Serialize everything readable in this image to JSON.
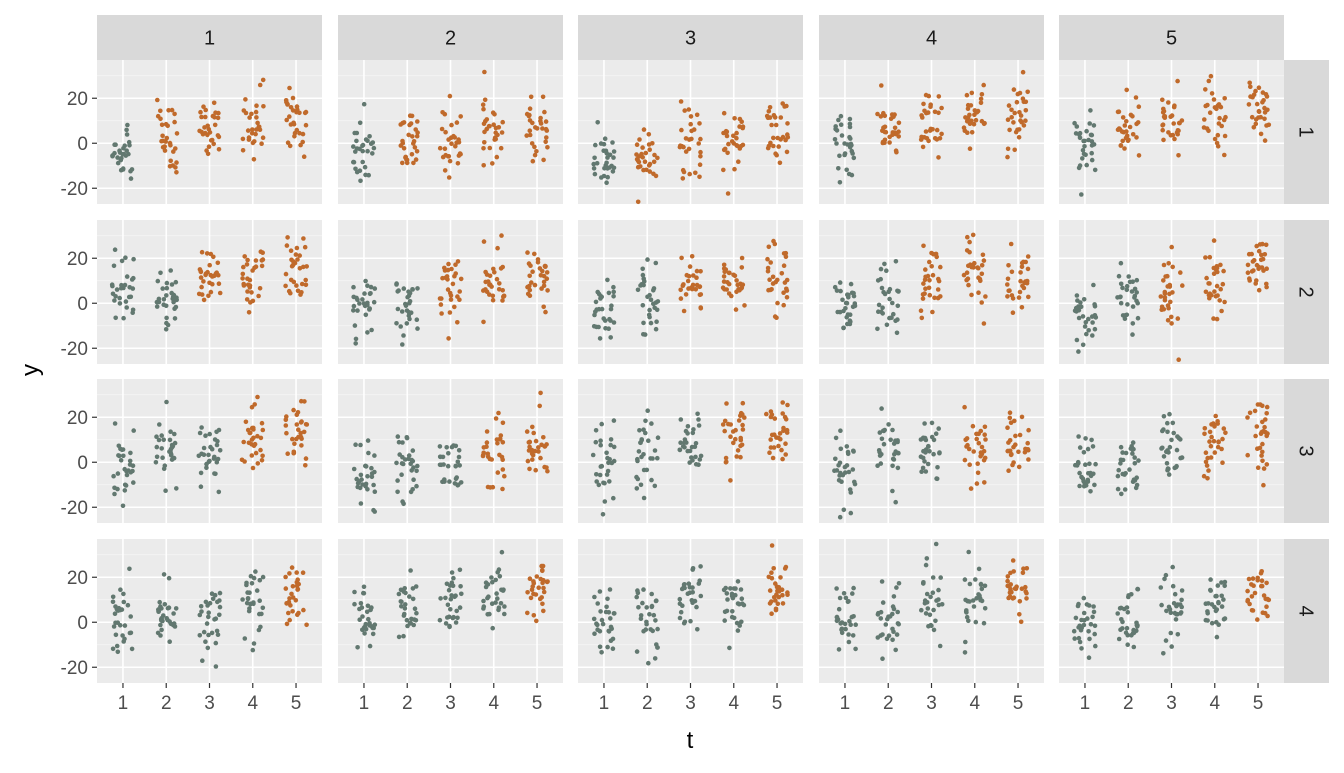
{
  "chart_data": {
    "type": "scatter",
    "xlabel": "t",
    "ylabel": "y",
    "x_categories": [
      "1",
      "2",
      "3",
      "4",
      "5"
    ],
    "ylim": [
      -27,
      37
    ],
    "y_ticks": [
      -20,
      0,
      20
    ],
    "grid": true,
    "legend": "none",
    "facet_columns": [
      "1",
      "2",
      "3",
      "4",
      "5"
    ],
    "facet_rows": [
      "1",
      "2",
      "3",
      "4"
    ],
    "colors": {
      "gray": "#627870",
      "orange": "#c06a2b"
    },
    "points_per_group": 30,
    "jitter_width": 0.25,
    "panels": [
      {
        "row": "1",
        "col": "1",
        "groups": [
          {
            "t": 1,
            "color": "gray",
            "center": -3,
            "spread": 8
          },
          {
            "t": 2,
            "color": "orange",
            "center": 3,
            "spread": 8
          },
          {
            "t": 3,
            "color": "orange",
            "center": 6,
            "spread": 8
          },
          {
            "t": 4,
            "color": "orange",
            "center": 7,
            "spread": 8
          },
          {
            "t": 5,
            "color": "orange",
            "center": 11,
            "spread": 7
          }
        ]
      },
      {
        "row": "1",
        "col": "2",
        "groups": [
          {
            "t": 1,
            "color": "gray",
            "center": -3,
            "spread": 8
          },
          {
            "t": 2,
            "color": "orange",
            "center": 0,
            "spread": 8
          },
          {
            "t": 3,
            "color": "orange",
            "center": 0,
            "spread": 7
          },
          {
            "t": 4,
            "color": "orange",
            "center": 5,
            "spread": 7
          },
          {
            "t": 5,
            "color": "orange",
            "center": 9,
            "spread": 7
          }
        ]
      },
      {
        "row": "1",
        "col": "3",
        "groups": [
          {
            "t": 1,
            "color": "gray",
            "center": -5,
            "spread": 7
          },
          {
            "t": 2,
            "color": "orange",
            "center": -6,
            "spread": 6
          },
          {
            "t": 3,
            "color": "orange",
            "center": 2,
            "spread": 8
          },
          {
            "t": 4,
            "color": "orange",
            "center": 1,
            "spread": 7
          },
          {
            "t": 5,
            "color": "orange",
            "center": 4,
            "spread": 7
          }
        ]
      },
      {
        "row": "1",
        "col": "4",
        "groups": [
          {
            "t": 1,
            "color": "gray",
            "center": -1,
            "spread": 8
          },
          {
            "t": 2,
            "color": "orange",
            "center": 6,
            "spread": 6
          },
          {
            "t": 3,
            "color": "orange",
            "center": 7,
            "spread": 9
          },
          {
            "t": 4,
            "color": "orange",
            "center": 11,
            "spread": 7
          },
          {
            "t": 5,
            "color": "orange",
            "center": 12,
            "spread": 8
          }
        ]
      },
      {
        "row": "1",
        "col": "5",
        "groups": [
          {
            "t": 1,
            "color": "gray",
            "center": 0,
            "spread": 8
          },
          {
            "t": 2,
            "color": "orange",
            "center": 7,
            "spread": 7
          },
          {
            "t": 3,
            "color": "orange",
            "center": 9,
            "spread": 7
          },
          {
            "t": 4,
            "color": "orange",
            "center": 11,
            "spread": 7
          },
          {
            "t": 5,
            "color": "orange",
            "center": 13,
            "spread": 7
          }
        ]
      },
      {
        "row": "2",
        "col": "1",
        "groups": [
          {
            "t": 1,
            "color": "gray",
            "center": 2,
            "spread": 9
          },
          {
            "t": 2,
            "color": "gray",
            "center": 3,
            "spread": 7
          },
          {
            "t": 3,
            "color": "orange",
            "center": 11,
            "spread": 7
          },
          {
            "t": 4,
            "color": "orange",
            "center": 13,
            "spread": 8
          },
          {
            "t": 5,
            "color": "orange",
            "center": 15,
            "spread": 8
          }
        ]
      },
      {
        "row": "2",
        "col": "2",
        "groups": [
          {
            "t": 1,
            "color": "gray",
            "center": -3,
            "spread": 8
          },
          {
            "t": 2,
            "color": "gray",
            "center": -1,
            "spread": 7
          },
          {
            "t": 3,
            "color": "orange",
            "center": 7,
            "spread": 8
          },
          {
            "t": 4,
            "color": "orange",
            "center": 9,
            "spread": 9
          },
          {
            "t": 5,
            "color": "orange",
            "center": 9,
            "spread": 7
          }
        ]
      },
      {
        "row": "2",
        "col": "3",
        "groups": [
          {
            "t": 1,
            "color": "gray",
            "center": -2,
            "spread": 7
          },
          {
            "t": 2,
            "color": "gray",
            "center": 4,
            "spread": 8
          },
          {
            "t": 3,
            "color": "orange",
            "center": 8,
            "spread": 6
          },
          {
            "t": 4,
            "color": "orange",
            "center": 8,
            "spread": 7
          },
          {
            "t": 5,
            "color": "orange",
            "center": 13,
            "spread": 8
          }
        ]
      },
      {
        "row": "2",
        "col": "4",
        "groups": [
          {
            "t": 1,
            "color": "gray",
            "center": -2,
            "spread": 7
          },
          {
            "t": 2,
            "color": "gray",
            "center": 1,
            "spread": 8
          },
          {
            "t": 3,
            "color": "orange",
            "center": 9,
            "spread": 8
          },
          {
            "t": 4,
            "color": "orange",
            "center": 12,
            "spread": 7
          },
          {
            "t": 5,
            "color": "orange",
            "center": 12,
            "spread": 8
          }
        ]
      },
      {
        "row": "2",
        "col": "5",
        "groups": [
          {
            "t": 1,
            "color": "gray",
            "center": -5,
            "spread": 8
          },
          {
            "t": 2,
            "color": "gray",
            "center": 3,
            "spread": 6
          },
          {
            "t": 3,
            "color": "orange",
            "center": 5,
            "spread": 8
          },
          {
            "t": 4,
            "color": "orange",
            "center": 7,
            "spread": 8
          },
          {
            "t": 5,
            "color": "orange",
            "center": 16,
            "spread": 6
          }
        ]
      },
      {
        "row": "3",
        "col": "1",
        "groups": [
          {
            "t": 1,
            "color": "gray",
            "center": -2,
            "spread": 8
          },
          {
            "t": 2,
            "color": "gray",
            "center": 4,
            "spread": 7
          },
          {
            "t": 3,
            "color": "gray",
            "center": 5,
            "spread": 7
          },
          {
            "t": 4,
            "color": "orange",
            "center": 10,
            "spread": 7
          },
          {
            "t": 5,
            "color": "orange",
            "center": 13,
            "spread": 8
          }
        ]
      },
      {
        "row": "3",
        "col": "2",
        "groups": [
          {
            "t": 1,
            "color": "gray",
            "center": -4,
            "spread": 7
          },
          {
            "t": 2,
            "color": "gray",
            "center": 0,
            "spread": 7
          },
          {
            "t": 3,
            "color": "gray",
            "center": 1,
            "spread": 7
          },
          {
            "t": 4,
            "color": "orange",
            "center": 6,
            "spread": 8
          },
          {
            "t": 5,
            "color": "orange",
            "center": 7,
            "spread": 7
          }
        ]
      },
      {
        "row": "3",
        "col": "3",
        "groups": [
          {
            "t": 1,
            "color": "gray",
            "center": 2,
            "spread": 8
          },
          {
            "t": 2,
            "color": "gray",
            "center": 2,
            "spread": 8
          },
          {
            "t": 3,
            "color": "gray",
            "center": 8,
            "spread": 8
          },
          {
            "t": 4,
            "color": "orange",
            "center": 13,
            "spread": 7
          },
          {
            "t": 5,
            "color": "orange",
            "center": 13,
            "spread": 8
          }
        ]
      },
      {
        "row": "3",
        "col": "4",
        "groups": [
          {
            "t": 1,
            "color": "gray",
            "center": -4,
            "spread": 8
          },
          {
            "t": 2,
            "color": "gray",
            "center": 1,
            "spread": 8
          },
          {
            "t": 3,
            "color": "gray",
            "center": 7,
            "spread": 8
          },
          {
            "t": 4,
            "color": "orange",
            "center": 6,
            "spread": 8
          },
          {
            "t": 5,
            "color": "orange",
            "center": 8,
            "spread": 7
          }
        ]
      },
      {
        "row": "3",
        "col": "5",
        "groups": [
          {
            "t": 1,
            "color": "gray",
            "center": -4,
            "spread": 7
          },
          {
            "t": 2,
            "color": "gray",
            "center": 1,
            "spread": 8
          },
          {
            "t": 3,
            "color": "gray",
            "center": 7,
            "spread": 7
          },
          {
            "t": 4,
            "color": "orange",
            "center": 9,
            "spread": 8
          },
          {
            "t": 5,
            "color": "orange",
            "center": 11,
            "spread": 8
          }
        ]
      },
      {
        "row": "4",
        "col": "1",
        "groups": [
          {
            "t": 1,
            "color": "gray",
            "center": 1,
            "spread": 8
          },
          {
            "t": 2,
            "color": "gray",
            "center": 2,
            "spread": 7
          },
          {
            "t": 3,
            "color": "gray",
            "center": 1,
            "spread": 9
          },
          {
            "t": 4,
            "color": "gray",
            "center": 8,
            "spread": 8
          },
          {
            "t": 5,
            "color": "orange",
            "center": 14,
            "spread": 7
          }
        ]
      },
      {
        "row": "4",
        "col": "2",
        "groups": [
          {
            "t": 1,
            "color": "gray",
            "center": 1,
            "spread": 7
          },
          {
            "t": 2,
            "color": "gray",
            "center": 5,
            "spread": 7
          },
          {
            "t": 3,
            "color": "gray",
            "center": 9,
            "spread": 8
          },
          {
            "t": 4,
            "color": "gray",
            "center": 11,
            "spread": 8
          },
          {
            "t": 5,
            "color": "orange",
            "center": 14,
            "spread": 7
          }
        ]
      },
      {
        "row": "4",
        "col": "3",
        "groups": [
          {
            "t": 1,
            "color": "gray",
            "center": 2,
            "spread": 9
          },
          {
            "t": 2,
            "color": "gray",
            "center": 3,
            "spread": 8
          },
          {
            "t": 3,
            "color": "gray",
            "center": 9,
            "spread": 9
          },
          {
            "t": 4,
            "color": "gray",
            "center": 8,
            "spread": 8
          },
          {
            "t": 5,
            "color": "orange",
            "center": 15,
            "spread": 7
          }
        ]
      },
      {
        "row": "4",
        "col": "4",
        "groups": [
          {
            "t": 1,
            "color": "gray",
            "center": 2,
            "spread": 7
          },
          {
            "t": 2,
            "color": "gray",
            "center": 1,
            "spread": 7
          },
          {
            "t": 3,
            "color": "gray",
            "center": 8,
            "spread": 7
          },
          {
            "t": 4,
            "color": "gray",
            "center": 8,
            "spread": 8
          },
          {
            "t": 5,
            "color": "orange",
            "center": 15,
            "spread": 7
          }
        ]
      },
      {
        "row": "4",
        "col": "5",
        "groups": [
          {
            "t": 1,
            "color": "gray",
            "center": -2,
            "spread": 7
          },
          {
            "t": 2,
            "color": "gray",
            "center": 3,
            "spread": 7
          },
          {
            "t": 3,
            "color": "gray",
            "center": 7,
            "spread": 7
          },
          {
            "t": 4,
            "color": "gray",
            "center": 7,
            "spread": 7
          },
          {
            "t": 5,
            "color": "orange",
            "center": 14,
            "spread": 7
          }
        ]
      }
    ]
  }
}
